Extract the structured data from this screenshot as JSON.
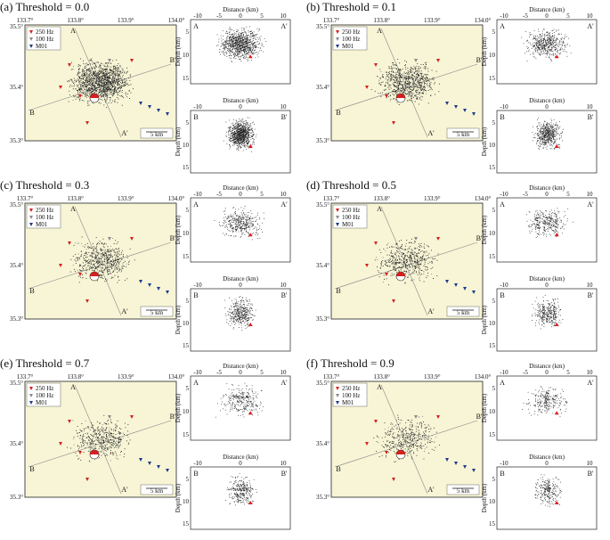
{
  "panels": [
    {
      "label": "(a) Threshold = 0.0",
      "density": 1.0
    },
    {
      "label": "(b) Threshold = 0.1",
      "density": 0.55
    },
    {
      "label": "(c) Threshold = 0.3",
      "density": 0.42
    },
    {
      "label": "(d) Threshold = 0.5",
      "density": 0.36
    },
    {
      "label": "(e) Threshold = 0.7",
      "density": 0.32
    },
    {
      "label": "(f) Threshold = 0.9",
      "density": 0.28
    }
  ],
  "map": {
    "lon_ticks": [
      "133.7°",
      "133.8°",
      "133.9°",
      "134.0°"
    ],
    "lat_ticks": [
      "35.5°",
      "35.4°",
      "35.3°"
    ],
    "scale_bar": "5 km",
    "profile_letters": {
      "A": "A",
      "A_prime": "A'",
      "B": "B",
      "B_prime": "B'"
    },
    "legend": [
      {
        "label": "250 Hz",
        "color": "#d62020"
      },
      {
        "label": "100 Hz",
        "color": "#8a8a8a"
      },
      {
        "label": "M01",
        "color": "#1f3a8a"
      }
    ],
    "background_color": "#f7f5d6"
  },
  "cross_section": {
    "distance_label": "Distance (km)",
    "depth_label": "Depth (km)",
    "aa_distance_ticks": [
      "-10",
      "-5",
      "0",
      "5",
      "10"
    ],
    "bb_distance_ticks": [
      "-10",
      "0",
      "10"
    ],
    "depth_ticks": [
      "5",
      "10",
      "15"
    ]
  }
}
